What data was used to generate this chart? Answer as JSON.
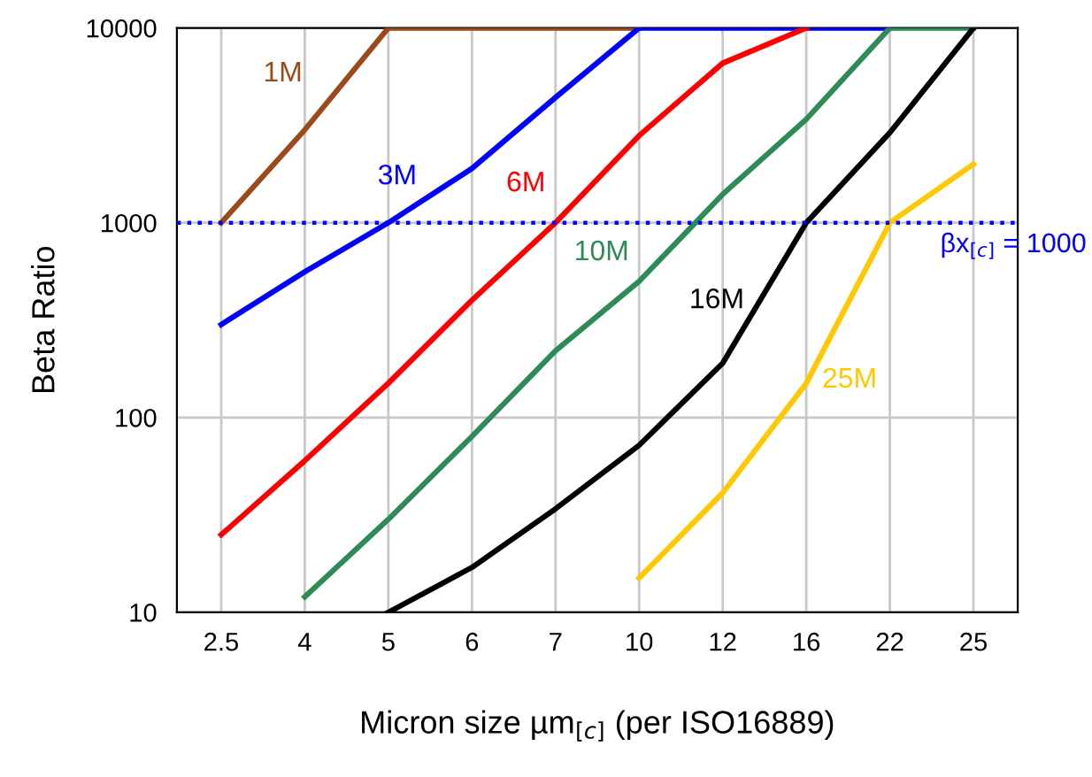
{
  "chart_data": {
    "type": "line",
    "xlabel": "Micron size µm$_{[c]}$ (per ISO16889)",
    "ylabel": "Beta Ratio",
    "categories": [
      "2.5",
      "4",
      "5",
      "6",
      "7",
      "10",
      "12",
      "16",
      "22",
      "25"
    ],
    "series": [
      {
        "name": "1M",
        "color": "#9c4a1a",
        "values": [
          1000,
          3000,
          10000,
          10000,
          10000,
          10000,
          null,
          null,
          null,
          null
        ]
      },
      {
        "name": "3M",
        "color": "#0000ff",
        "values": [
          300,
          560,
          1000,
          1900,
          4400,
          10000,
          10000,
          10000,
          10000,
          null
        ]
      },
      {
        "name": "6M",
        "color": "#ff0000",
        "values": [
          25,
          60,
          150,
          400,
          1000,
          2800,
          6600,
          10000,
          null,
          null
        ]
      },
      {
        "name": "10M",
        "color": "#2e8b57",
        "values": [
          null,
          12,
          30,
          80,
          220,
          500,
          1400,
          3400,
          10000,
          10000
        ]
      },
      {
        "name": "16M",
        "color": "#000000",
        "values": [
          null,
          null,
          10,
          17,
          34,
          72,
          190,
          1000,
          2900,
          10000
        ]
      },
      {
        "name": "25M",
        "color": "#ffc800",
        "values": [
          null,
          null,
          null,
          null,
          null,
          15,
          41,
          150,
          1000,
          2000
        ]
      }
    ],
    "log": "y",
    "ylim": [
      10,
      10000
    ],
    "yticks": [
      10,
      100,
      1000,
      10000
    ],
    "grid": true,
    "marker": "none",
    "line_style": "solid",
    "ref_lines": [
      {
        "axis": "y",
        "value": 1000,
        "label": "βx$_{[c]}$ = 1000",
        "color": "#0000ff",
        "line_style": "dotted"
      }
    ]
  }
}
